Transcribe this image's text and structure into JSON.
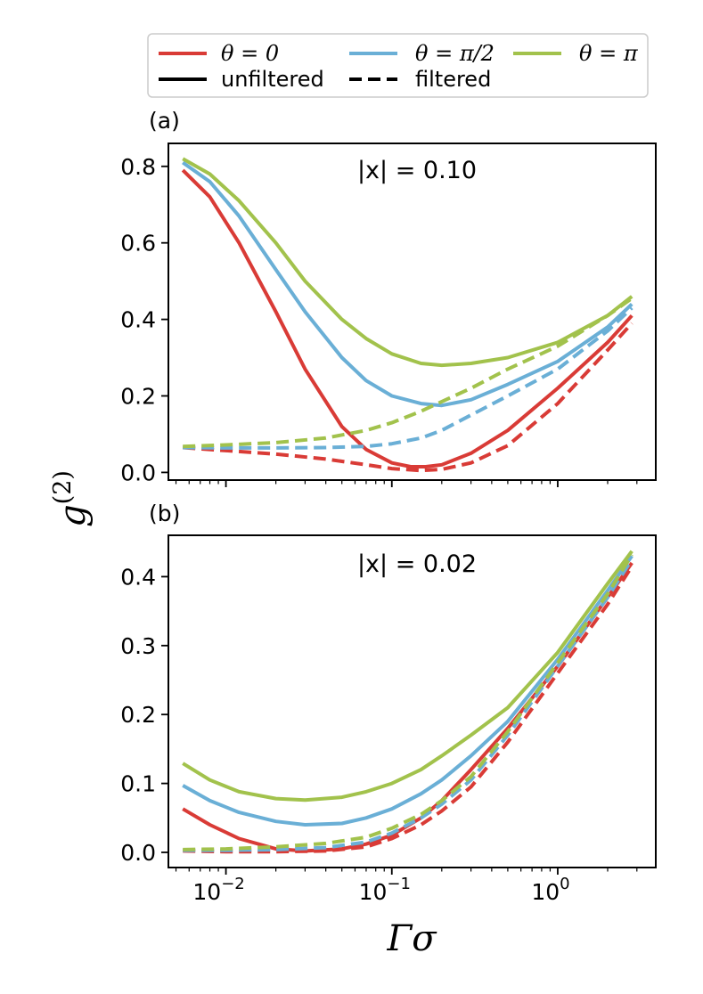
{
  "colors": {
    "theta_0": "#d93b36",
    "theta_pi_2": "#6aafd6",
    "theta_pi": "#a2c24c"
  },
  "legend": {
    "entries": [
      {
        "label": "θ = 0",
        "color": "#d93b36",
        "style": "solid"
      },
      {
        "label": "θ = π/2",
        "color": "#6aafd6",
        "style": "solid"
      },
      {
        "label": "θ = π",
        "color": "#a2c24c",
        "style": "solid"
      },
      {
        "label": "unfiltered",
        "color": "#000000",
        "style": "solid"
      },
      {
        "label": "filtered",
        "color": "#000000",
        "style": "dashed"
      }
    ]
  },
  "axes": {
    "ylabel": "g(2)",
    "ylabel_base": "g",
    "ylabel_sup": "(2)",
    "xlabel": "Γσ",
    "x_tick_labels": [
      "10",
      "10",
      "10"
    ],
    "x_tick_exponents": [
      "−2",
      "−1",
      "0"
    ]
  },
  "chart_data": [
    {
      "type": "line",
      "panel_label": "(a)",
      "annotation": "|x| = 0.10",
      "xscale": "log",
      "xlim": [
        0.0045,
        3.9
      ],
      "ylim": [
        -0.02,
        0.86
      ],
      "yticks": [
        0.0,
        0.2,
        0.4,
        0.6,
        0.8
      ],
      "ytick_labels": [
        "0.0",
        "0.2",
        "0.4",
        "0.6",
        "0.8"
      ],
      "xlabel": "",
      "ylabel": "g(2)",
      "series": [
        {
          "name": "θ = 0, unfiltered",
          "color": "#d93b36",
          "style": "solid",
          "x": [
            0.0055,
            0.008,
            0.012,
            0.02,
            0.03,
            0.05,
            0.07,
            0.1,
            0.13,
            0.16,
            0.2,
            0.3,
            0.5,
            1.0,
            2.0,
            2.8
          ],
          "y": [
            0.79,
            0.72,
            0.6,
            0.42,
            0.27,
            0.12,
            0.06,
            0.025,
            0.015,
            0.015,
            0.02,
            0.05,
            0.11,
            0.22,
            0.34,
            0.41
          ]
        },
        {
          "name": "θ = 0, filtered",
          "color": "#d93b36",
          "style": "dashed",
          "x": [
            0.0055,
            0.01,
            0.02,
            0.04,
            0.07,
            0.1,
            0.15,
            0.2,
            0.3,
            0.5,
            1.0,
            2.0,
            2.8
          ],
          "y": [
            0.065,
            0.057,
            0.048,
            0.035,
            0.02,
            0.01,
            0.005,
            0.008,
            0.025,
            0.07,
            0.18,
            0.32,
            0.39
          ]
        },
        {
          "name": "θ = π/2, unfiltered",
          "color": "#6aafd6",
          "style": "solid",
          "x": [
            0.0055,
            0.008,
            0.012,
            0.02,
            0.03,
            0.05,
            0.07,
            0.1,
            0.15,
            0.2,
            0.3,
            0.5,
            1.0,
            2.0,
            2.8
          ],
          "y": [
            0.81,
            0.76,
            0.67,
            0.53,
            0.42,
            0.3,
            0.24,
            0.2,
            0.18,
            0.175,
            0.19,
            0.23,
            0.29,
            0.38,
            0.44
          ]
        },
        {
          "name": "θ = π/2, filtered",
          "color": "#6aafd6",
          "style": "dashed",
          "x": [
            0.0055,
            0.01,
            0.02,
            0.04,
            0.07,
            0.1,
            0.15,
            0.2,
            0.3,
            0.5,
            1.0,
            2.0,
            2.8
          ],
          "y": [
            0.065,
            0.064,
            0.064,
            0.065,
            0.068,
            0.075,
            0.09,
            0.11,
            0.15,
            0.2,
            0.27,
            0.37,
            0.43
          ]
        },
        {
          "name": "θ = π, unfiltered",
          "color": "#a2c24c",
          "style": "solid",
          "x": [
            0.0055,
            0.008,
            0.012,
            0.02,
            0.03,
            0.05,
            0.07,
            0.1,
            0.15,
            0.2,
            0.3,
            0.5,
            1.0,
            2.0,
            2.8
          ],
          "y": [
            0.82,
            0.78,
            0.71,
            0.6,
            0.5,
            0.4,
            0.35,
            0.31,
            0.285,
            0.28,
            0.285,
            0.3,
            0.34,
            0.41,
            0.46
          ]
        },
        {
          "name": "θ = π, filtered",
          "color": "#a2c24c",
          "style": "dashed",
          "x": [
            0.0055,
            0.01,
            0.02,
            0.04,
            0.07,
            0.1,
            0.15,
            0.2,
            0.3,
            0.5,
            1.0,
            2.0,
            2.8
          ],
          "y": [
            0.068,
            0.072,
            0.078,
            0.09,
            0.11,
            0.13,
            0.16,
            0.185,
            0.22,
            0.27,
            0.33,
            0.41,
            0.455
          ]
        }
      ]
    },
    {
      "type": "line",
      "panel_label": "(b)",
      "annotation": "|x| = 0.02",
      "xscale": "log",
      "xlim": [
        0.0045,
        3.9
      ],
      "ylim": [
        -0.022,
        0.46
      ],
      "yticks": [
        0.0,
        0.1,
        0.2,
        0.3,
        0.4
      ],
      "ytick_labels": [
        "0.0",
        "0.1",
        "0.2",
        "0.3",
        "0.4"
      ],
      "xlabel": "Γσ",
      "ylabel": "g(2)",
      "series": [
        {
          "name": "θ = 0, unfiltered",
          "color": "#d93b36",
          "style": "solid",
          "x": [
            0.0055,
            0.008,
            0.012,
            0.02,
            0.03,
            0.05,
            0.07,
            0.1,
            0.15,
            0.2,
            0.3,
            0.5,
            1.0,
            2.0,
            2.8
          ],
          "y": [
            0.063,
            0.04,
            0.02,
            0.005,
            0.002,
            0.005,
            0.012,
            0.025,
            0.05,
            0.075,
            0.12,
            0.18,
            0.27,
            0.37,
            0.42
          ]
        },
        {
          "name": "θ = 0, filtered",
          "color": "#d93b36",
          "style": "dashed",
          "x": [
            0.0055,
            0.01,
            0.02,
            0.04,
            0.07,
            0.1,
            0.15,
            0.2,
            0.3,
            0.5,
            1.0,
            2.0,
            2.8
          ],
          "y": [
            0.002,
            0.001,
            0.001,
            0.002,
            0.008,
            0.02,
            0.04,
            0.06,
            0.095,
            0.16,
            0.26,
            0.36,
            0.415
          ]
        },
        {
          "name": "θ = π/2, unfiltered",
          "color": "#6aafd6",
          "style": "solid",
          "x": [
            0.0055,
            0.008,
            0.012,
            0.02,
            0.03,
            0.05,
            0.07,
            0.1,
            0.15,
            0.2,
            0.3,
            0.5,
            1.0,
            2.0,
            2.8
          ],
          "y": [
            0.097,
            0.075,
            0.058,
            0.045,
            0.04,
            0.042,
            0.05,
            0.063,
            0.085,
            0.105,
            0.14,
            0.19,
            0.28,
            0.38,
            0.43
          ]
        },
        {
          "name": "θ = π/2, filtered",
          "color": "#6aafd6",
          "style": "dashed",
          "x": [
            0.0055,
            0.01,
            0.02,
            0.04,
            0.07,
            0.1,
            0.15,
            0.2,
            0.3,
            0.5,
            1.0,
            2.0,
            2.8
          ],
          "y": [
            0.003,
            0.003,
            0.004,
            0.007,
            0.015,
            0.028,
            0.05,
            0.07,
            0.105,
            0.17,
            0.27,
            0.37,
            0.425
          ]
        },
        {
          "name": "θ = π, unfiltered",
          "color": "#a2c24c",
          "style": "solid",
          "x": [
            0.0055,
            0.008,
            0.012,
            0.02,
            0.03,
            0.05,
            0.07,
            0.1,
            0.15,
            0.2,
            0.3,
            0.5,
            1.0,
            2.0,
            2.8
          ],
          "y": [
            0.129,
            0.105,
            0.088,
            0.078,
            0.076,
            0.08,
            0.088,
            0.1,
            0.12,
            0.14,
            0.17,
            0.21,
            0.29,
            0.39,
            0.437
          ]
        },
        {
          "name": "θ = π, filtered",
          "color": "#a2c24c",
          "style": "dashed",
          "x": [
            0.0055,
            0.01,
            0.02,
            0.04,
            0.07,
            0.1,
            0.15,
            0.2,
            0.3,
            0.5,
            1.0,
            2.0,
            2.8
          ],
          "y": [
            0.004,
            0.005,
            0.008,
            0.013,
            0.022,
            0.035,
            0.055,
            0.075,
            0.11,
            0.175,
            0.275,
            0.375,
            0.432
          ]
        }
      ]
    }
  ]
}
